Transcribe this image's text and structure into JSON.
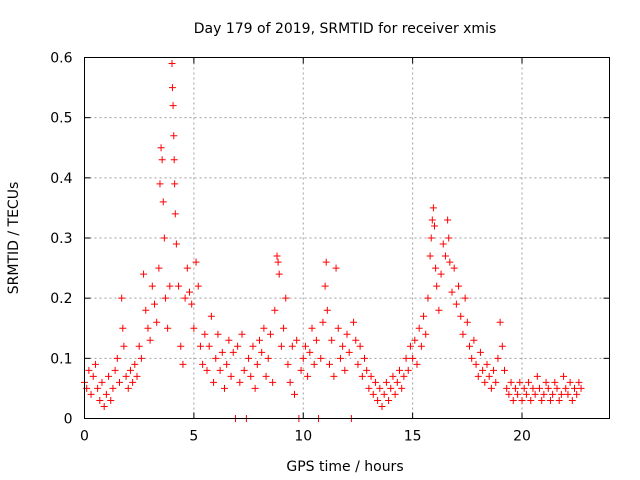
{
  "chart_data": {
    "type": "scatter",
    "title": "Day 179 of 2019, SRMTID for receiver xmis",
    "xlabel": "GPS time / hours",
    "ylabel": "SRMTID / TECUs",
    "xlim": [
      0,
      24
    ],
    "ylim": [
      0,
      0.6
    ],
    "xticks": [
      {
        "value": 0,
        "label": "0"
      },
      {
        "value": 5,
        "label": "5"
      },
      {
        "value": 10,
        "label": "10"
      },
      {
        "value": 15,
        "label": "15"
      },
      {
        "value": 20,
        "label": "20"
      }
    ],
    "yticks": [
      {
        "value": 0,
        "label": "0"
      },
      {
        "value": 0.1,
        "label": "0.1"
      },
      {
        "value": 0.2,
        "label": "0.2"
      },
      {
        "value": 0.3,
        "label": "0.3"
      },
      {
        "value": 0.4,
        "label": "0.4"
      },
      {
        "value": 0.5,
        "label": "0.5"
      },
      {
        "value": 0.6,
        "label": "0.6"
      }
    ],
    "grid": true,
    "marker": "+",
    "color": "#ff0000",
    "series": [
      {
        "name": "SRMTID",
        "points": [
          [
            0.0,
            0.06
          ],
          [
            0.1,
            0.05
          ],
          [
            0.2,
            0.08
          ],
          [
            0.3,
            0.04
          ],
          [
            0.4,
            0.07
          ],
          [
            0.5,
            0.09
          ],
          [
            0.6,
            0.05
          ],
          [
            0.7,
            0.03
          ],
          [
            0.8,
            0.06
          ],
          [
            0.9,
            0.02
          ],
          [
            1.0,
            0.04
          ],
          [
            1.1,
            0.07
          ],
          [
            1.2,
            0.03
          ],
          [
            1.3,
            0.05
          ],
          [
            1.4,
            0.08
          ],
          [
            1.5,
            0.1
          ],
          [
            1.6,
            0.06
          ],
          [
            1.7,
            0.2
          ],
          [
            1.75,
            0.15
          ],
          [
            1.8,
            0.12
          ],
          [
            1.9,
            0.07
          ],
          [
            2.0,
            0.05
          ],
          [
            2.1,
            0.08
          ],
          [
            2.2,
            0.06
          ],
          [
            2.3,
            0.09
          ],
          [
            2.4,
            0.07
          ],
          [
            2.5,
            0.12
          ],
          [
            2.6,
            0.1
          ],
          [
            2.7,
            0.24
          ],
          [
            2.8,
            0.18
          ],
          [
            2.9,
            0.15
          ],
          [
            3.0,
            0.13
          ],
          [
            3.1,
            0.22
          ],
          [
            3.2,
            0.19
          ],
          [
            3.3,
            0.16
          ],
          [
            3.4,
            0.25
          ],
          [
            3.45,
            0.39
          ],
          [
            3.5,
            0.45
          ],
          [
            3.55,
            0.43
          ],
          [
            3.6,
            0.36
          ],
          [
            3.65,
            0.3
          ],
          [
            3.7,
            0.2
          ],
          [
            3.8,
            0.15
          ],
          [
            3.9,
            0.22
          ],
          [
            4.0,
            0.59
          ],
          [
            4.02,
            0.55
          ],
          [
            4.05,
            0.52
          ],
          [
            4.08,
            0.47
          ],
          [
            4.1,
            0.43
          ],
          [
            4.12,
            0.39
          ],
          [
            4.15,
            0.34
          ],
          [
            4.2,
            0.29
          ],
          [
            4.3,
            0.22
          ],
          [
            4.4,
            0.12
          ],
          [
            4.5,
            0.09
          ],
          [
            4.6,
            0.2
          ],
          [
            4.7,
            0.25
          ],
          [
            4.8,
            0.21
          ],
          [
            4.9,
            0.19
          ],
          [
            5.0,
            0.15
          ],
          [
            5.1,
            0.26
          ],
          [
            5.2,
            0.22
          ],
          [
            5.3,
            0.12
          ],
          [
            5.4,
            0.09
          ],
          [
            5.5,
            0.14
          ],
          [
            5.6,
            0.08
          ],
          [
            5.7,
            0.12
          ],
          [
            5.8,
            0.17
          ],
          [
            5.9,
            0.06
          ],
          [
            6.0,
            0.1
          ],
          [
            6.1,
            0.14
          ],
          [
            6.2,
            0.08
          ],
          [
            6.3,
            0.11
          ],
          [
            6.4,
            0.05
          ],
          [
            6.5,
            0.09
          ],
          [
            6.6,
            0.13
          ],
          [
            6.7,
            0.07
          ],
          [
            6.8,
            0.11
          ],
          [
            6.9,
            0.0
          ],
          [
            7.0,
            0.12
          ],
          [
            7.1,
            0.06
          ],
          [
            7.2,
            0.14
          ],
          [
            7.3,
            0.08
          ],
          [
            7.4,
            0.0
          ],
          [
            7.5,
            0.1
          ],
          [
            7.6,
            0.07
          ],
          [
            7.7,
            0.12
          ],
          [
            7.8,
            0.05
          ],
          [
            7.9,
            0.09
          ],
          [
            8.0,
            0.13
          ],
          [
            8.1,
            0.11
          ],
          [
            8.2,
            0.15
          ],
          [
            8.3,
            0.07
          ],
          [
            8.4,
            0.1
          ],
          [
            8.5,
            0.14
          ],
          [
            8.6,
            0.06
          ],
          [
            8.7,
            0.18
          ],
          [
            8.8,
            0.27
          ],
          [
            8.85,
            0.26
          ],
          [
            8.9,
            0.24
          ],
          [
            9.0,
            0.12
          ],
          [
            9.1,
            0.15
          ],
          [
            9.2,
            0.2
          ],
          [
            9.3,
            0.09
          ],
          [
            9.4,
            0.06
          ],
          [
            9.5,
            0.12
          ],
          [
            9.6,
            0.04
          ],
          [
            9.7,
            0.13
          ],
          [
            9.8,
            0.0
          ],
          [
            9.9,
            0.08
          ],
          [
            10.0,
            0.1
          ],
          [
            10.1,
            0.12
          ],
          [
            10.2,
            0.07
          ],
          [
            10.3,
            0.11
          ],
          [
            10.4,
            0.15
          ],
          [
            10.5,
            0.09
          ],
          [
            10.6,
            0.13
          ],
          [
            10.7,
            0.0
          ],
          [
            10.8,
            0.1
          ],
          [
            10.9,
            0.16
          ],
          [
            11.0,
            0.22
          ],
          [
            11.05,
            0.26
          ],
          [
            11.1,
            0.18
          ],
          [
            11.2,
            0.09
          ],
          [
            11.3,
            0.13
          ],
          [
            11.4,
            0.07
          ],
          [
            11.5,
            0.25
          ],
          [
            11.6,
            0.15
          ],
          [
            11.7,
            0.1
          ],
          [
            11.8,
            0.12
          ],
          [
            11.9,
            0.08
          ],
          [
            12.0,
            0.14
          ],
          [
            12.1,
            0.11
          ],
          [
            12.2,
            0.0
          ],
          [
            12.3,
            0.16
          ],
          [
            12.4,
            0.13
          ],
          [
            12.5,
            0.09
          ],
          [
            12.6,
            0.12
          ],
          [
            12.7,
            0.07
          ],
          [
            12.8,
            0.1
          ],
          [
            12.9,
            0.08
          ],
          [
            13.0,
            0.05
          ],
          [
            13.1,
            0.07
          ],
          [
            13.2,
            0.04
          ],
          [
            13.3,
            0.06
          ],
          [
            13.4,
            0.03
          ],
          [
            13.5,
            0.05
          ],
          [
            13.6,
            0.02
          ],
          [
            13.7,
            0.04
          ],
          [
            13.8,
            0.06
          ],
          [
            13.9,
            0.03
          ],
          [
            14.0,
            0.05
          ],
          [
            14.1,
            0.07
          ],
          [
            14.2,
            0.04
          ],
          [
            14.3,
            0.06
          ],
          [
            14.4,
            0.08
          ],
          [
            14.5,
            0.05
          ],
          [
            14.6,
            0.07
          ],
          [
            14.7,
            0.1
          ],
          [
            14.8,
            0.08
          ],
          [
            14.9,
            0.12
          ],
          [
            15.0,
            0.1
          ],
          [
            15.1,
            0.13
          ],
          [
            15.2,
            0.09
          ],
          [
            15.3,
            0.15
          ],
          [
            15.4,
            0.12
          ],
          [
            15.5,
            0.17
          ],
          [
            15.6,
            0.14
          ],
          [
            15.7,
            0.2
          ],
          [
            15.8,
            0.27
          ],
          [
            15.85,
            0.3
          ],
          [
            15.9,
            0.33
          ],
          [
            15.95,
            0.35
          ],
          [
            16.0,
            0.32
          ],
          [
            16.05,
            0.25
          ],
          [
            16.1,
            0.22
          ],
          [
            16.2,
            0.18
          ],
          [
            16.3,
            0.24
          ],
          [
            16.4,
            0.29
          ],
          [
            16.5,
            0.27
          ],
          [
            16.6,
            0.33
          ],
          [
            16.65,
            0.3
          ],
          [
            16.7,
            0.26
          ],
          [
            16.8,
            0.21
          ],
          [
            16.9,
            0.25
          ],
          [
            17.0,
            0.19
          ],
          [
            17.1,
            0.22
          ],
          [
            17.2,
            0.17
          ],
          [
            17.3,
            0.14
          ],
          [
            17.4,
            0.2
          ],
          [
            17.5,
            0.16
          ],
          [
            17.6,
            0.12
          ],
          [
            17.7,
            0.1
          ],
          [
            17.8,
            0.13
          ],
          [
            17.9,
            0.09
          ],
          [
            18.0,
            0.07
          ],
          [
            18.1,
            0.11
          ],
          [
            18.2,
            0.08
          ],
          [
            18.3,
            0.06
          ],
          [
            18.4,
            0.09
          ],
          [
            18.5,
            0.07
          ],
          [
            18.6,
            0.05
          ],
          [
            18.7,
            0.08
          ],
          [
            18.8,
            0.06
          ],
          [
            18.9,
            0.1
          ],
          [
            19.0,
            0.16
          ],
          [
            19.1,
            0.12
          ],
          [
            19.2,
            0.08
          ],
          [
            19.3,
            0.05
          ],
          [
            19.4,
            0.04
          ],
          [
            19.5,
            0.06
          ],
          [
            19.6,
            0.03
          ],
          [
            19.7,
            0.05
          ],
          [
            19.8,
            0.04
          ],
          [
            19.9,
            0.06
          ],
          [
            20.0,
            0.03
          ],
          [
            20.1,
            0.05
          ],
          [
            20.2,
            0.04
          ],
          [
            20.3,
            0.06
          ],
          [
            20.4,
            0.03
          ],
          [
            20.5,
            0.05
          ],
          [
            20.6,
            0.04
          ],
          [
            20.7,
            0.07
          ],
          [
            20.8,
            0.05
          ],
          [
            20.9,
            0.03
          ],
          [
            21.0,
            0.04
          ],
          [
            21.1,
            0.06
          ],
          [
            21.2,
            0.05
          ],
          [
            21.3,
            0.03
          ],
          [
            21.4,
            0.04
          ],
          [
            21.5,
            0.06
          ],
          [
            21.6,
            0.05
          ],
          [
            21.7,
            0.03
          ],
          [
            21.8,
            0.04
          ],
          [
            21.9,
            0.07
          ],
          [
            22.0,
            0.05
          ],
          [
            22.1,
            0.04
          ],
          [
            22.2,
            0.06
          ],
          [
            22.3,
            0.03
          ],
          [
            22.4,
            0.05
          ],
          [
            22.5,
            0.04
          ],
          [
            22.6,
            0.06
          ],
          [
            22.7,
            0.05
          ]
        ]
      }
    ]
  }
}
